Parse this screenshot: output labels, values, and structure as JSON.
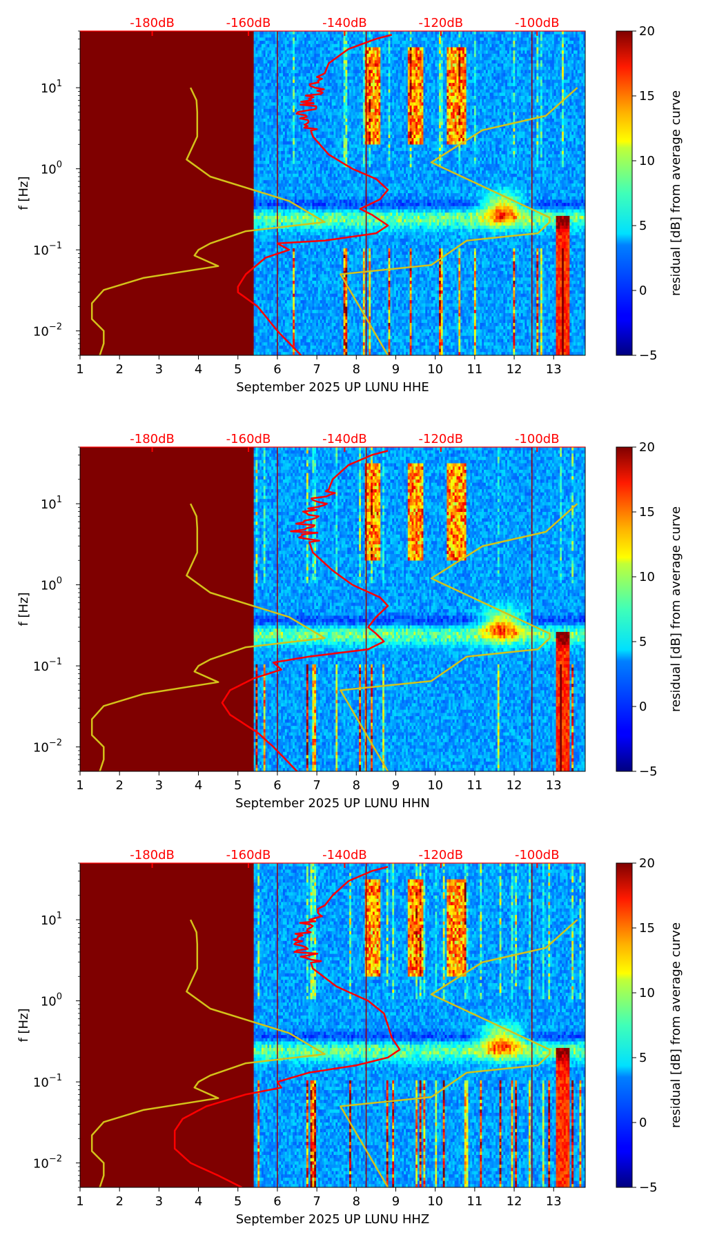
{
  "figure": {
    "type": "spectrogram-panels",
    "colormap": "jet",
    "background_color": "#7f0000",
    "panels": [
      {
        "channel": "HHE",
        "xlabel": "September 2025 UP LUNU  HHE",
        "ylabel": "f [Hz]",
        "colorbar_label": "residual [dB] from average curve",
        "gap_end_day": 5.4,
        "red_curve": [
          [
            45,
            8.9
          ],
          [
            40,
            8.5
          ],
          [
            30,
            7.8
          ],
          [
            20,
            7.3
          ],
          [
            15,
            7.2
          ],
          [
            10,
            7.0
          ],
          [
            7,
            6.8
          ],
          [
            5,
            6.7
          ],
          [
            3.5,
            6.8
          ],
          [
            2.5,
            6.9
          ],
          [
            1.5,
            7.3
          ],
          [
            1.0,
            7.9
          ],
          [
            0.75,
            8.5
          ],
          [
            0.55,
            8.8
          ],
          [
            0.42,
            8.6
          ],
          [
            0.32,
            8.1
          ],
          [
            0.27,
            8.4
          ],
          [
            0.2,
            8.8
          ],
          [
            0.16,
            8.5
          ],
          [
            0.13,
            7.2
          ],
          [
            0.12,
            6.0
          ],
          [
            0.1,
            6.3
          ],
          [
            0.08,
            5.7
          ],
          [
            0.05,
            5.2
          ],
          [
            0.035,
            5.0
          ],
          [
            0.03,
            5.0
          ],
          [
            0.02,
            5.5
          ],
          [
            0.01,
            6.0
          ],
          [
            0.005,
            6.6
          ]
        ],
        "red_noise_top": 15,
        "red_noise_bottom": 3,
        "red_noise_amp": 0.25,
        "hot_columns": [
          [
            8.2,
            8.6
          ],
          [
            9.3,
            9.7
          ],
          [
            10.3,
            10.8
          ]
        ]
      },
      {
        "channel": "HHN",
        "xlabel": "September 2025 UP LUNU  HHN",
        "ylabel": "f [Hz]",
        "colorbar_label": "residual [dB] from average curve",
        "gap_end_day": 5.4,
        "red_curve": [
          [
            45,
            8.8
          ],
          [
            40,
            8.4
          ],
          [
            30,
            7.8
          ],
          [
            20,
            7.4
          ],
          [
            15,
            7.3
          ],
          [
            10,
            7.0
          ],
          [
            7,
            6.8
          ],
          [
            5,
            6.6
          ],
          [
            3.5,
            6.8
          ],
          [
            2.5,
            6.9
          ],
          [
            1.5,
            7.4
          ],
          [
            1.0,
            7.9
          ],
          [
            0.7,
            8.6
          ],
          [
            0.55,
            8.8
          ],
          [
            0.4,
            8.5
          ],
          [
            0.3,
            8.3
          ],
          [
            0.25,
            8.5
          ],
          [
            0.2,
            8.7
          ],
          [
            0.16,
            8.3
          ],
          [
            0.13,
            6.8
          ],
          [
            0.11,
            5.9
          ],
          [
            0.09,
            6.1
          ],
          [
            0.07,
            5.4
          ],
          [
            0.05,
            4.8
          ],
          [
            0.035,
            4.6
          ],
          [
            0.025,
            4.8
          ],
          [
            0.015,
            5.5
          ],
          [
            0.01,
            5.9
          ],
          [
            0.005,
            6.5
          ]
        ],
        "red_noise_top": 15,
        "red_noise_bottom": 3.5,
        "red_noise_amp": 0.35,
        "hot_columns": [
          [
            8.2,
            8.6
          ],
          [
            9.3,
            9.7
          ],
          [
            10.3,
            10.8
          ]
        ]
      },
      {
        "channel": "HHZ",
        "xlabel": "September 2025 UP LUNU  HHZ",
        "ylabel": "f [Hz]",
        "colorbar_label": "residual [dB] from average curve",
        "gap_end_day": 5.4,
        "red_curve": [
          [
            45,
            8.8
          ],
          [
            40,
            8.4
          ],
          [
            30,
            7.8
          ],
          [
            20,
            7.4
          ],
          [
            15,
            7.2
          ],
          [
            10,
            6.9
          ],
          [
            7,
            6.7
          ],
          [
            5,
            6.6
          ],
          [
            3.5,
            6.8
          ],
          [
            2.5,
            6.9
          ],
          [
            1.5,
            7.5
          ],
          [
            1.0,
            8.3
          ],
          [
            0.7,
            8.7
          ],
          [
            0.5,
            8.8
          ],
          [
            0.35,
            8.9
          ],
          [
            0.25,
            9.1
          ],
          [
            0.2,
            8.8
          ],
          [
            0.16,
            8.0
          ],
          [
            0.13,
            6.8
          ],
          [
            0.1,
            6.0
          ],
          [
            0.085,
            6.1
          ],
          [
            0.07,
            5.2
          ],
          [
            0.05,
            4.2
          ],
          [
            0.035,
            3.6
          ],
          [
            0.025,
            3.4
          ],
          [
            0.015,
            3.4
          ],
          [
            0.01,
            3.8
          ],
          [
            0.007,
            4.5
          ],
          [
            0.005,
            5.1
          ]
        ],
        "red_noise_top": 15,
        "red_noise_bottom": 3,
        "red_noise_amp": 0.3,
        "hot_columns": [
          [
            8.2,
            8.6
          ],
          [
            9.3,
            9.7
          ],
          [
            10.3,
            10.8
          ]
        ]
      }
    ],
    "x_axis": {
      "min": 1,
      "max": 13.8,
      "ticks": [
        "1",
        "2",
        "3",
        "4",
        "5",
        "6",
        "7",
        "8",
        "9",
        "10",
        "11",
        "12",
        "13"
      ]
    },
    "y_axis": {
      "scale": "log",
      "min": 0.005,
      "max": 50,
      "tick_labels": [
        {
          "value": 10,
          "base": "10",
          "exp": "1"
        },
        {
          "value": 1,
          "base": "10",
          "exp": "0"
        },
        {
          "value": 0.1,
          "base": "10",
          "exp": "−1"
        },
        {
          "value": 0.01,
          "base": "10",
          "exp": "−2"
        }
      ]
    },
    "db_axis": {
      "color": "#ff0000",
      "min": -195,
      "max": -90,
      "ticks": [
        {
          "value": -180,
          "label": "-180dB"
        },
        {
          "value": -160,
          "label": "-160dB"
        },
        {
          "value": -140,
          "label": "-140dB"
        },
        {
          "value": -120,
          "label": "-120dB"
        },
        {
          "value": -100,
          "label": "-100dB"
        }
      ]
    },
    "colorbar": {
      "min": -5,
      "max": 20,
      "ticks": [
        {
          "value": 20,
          "label": "20"
        },
        {
          "value": 15,
          "label": "15"
        },
        {
          "value": 10,
          "label": "10"
        },
        {
          "value": 5,
          "label": "5"
        },
        {
          "value": 0,
          "label": "0"
        },
        {
          "value": -5,
          "label": "−5"
        }
      ]
    },
    "yellow_low_model": [
      [
        10,
        3.8
      ],
      [
        7,
        3.95
      ],
      [
        5,
        3.97
      ],
      [
        2.5,
        3.97
      ],
      [
        1.3,
        3.7
      ],
      [
        0.8,
        4.3
      ],
      [
        0.4,
        6.3
      ],
      [
        0.22,
        7.2
      ],
      [
        0.17,
        5.2
      ],
      [
        0.12,
        4.3
      ],
      [
        0.1,
        4.0
      ],
      [
        0.085,
        3.9
      ],
      [
        0.063,
        4.5
      ],
      [
        0.045,
        2.6
      ],
      [
        0.032,
        1.6
      ],
      [
        0.022,
        1.3
      ],
      [
        0.014,
        1.3
      ],
      [
        0.01,
        1.6
      ],
      [
        0.007,
        1.6
      ],
      [
        0.005,
        1.5
      ]
    ],
    "yellow_high_model": [
      [
        10,
        13.6
      ],
      [
        4.5,
        12.8
      ],
      [
        3,
        11.2
      ],
      [
        1.2,
        9.9
      ],
      [
        0.25,
        12.9
      ],
      [
        0.22,
        12.9
      ],
      [
        0.16,
        12.6
      ],
      [
        0.13,
        10.8
      ],
      [
        0.065,
        9.9
      ],
      [
        0.05,
        7.6
      ],
      [
        0.005,
        8.8
      ]
    ]
  },
  "chart_data": [
    {
      "type": "heatmap",
      "title": "",
      "xlabel": "September 2025 UP LUNU  HHE",
      "ylabel": "f [Hz]",
      "colorbar_label": "residual [dB] from average curve",
      "xlim": [
        1,
        13.8
      ],
      "ylim": [
        0.005,
        50
      ],
      "colorbar_range": [
        -5,
        20
      ],
      "secondary_xaxis": "-180dB, -160dB, -140dB, -120dB, -100dB (top, red)"
    },
    {
      "type": "heatmap",
      "title": "",
      "xlabel": "September 2025 UP LUNU  HHN",
      "ylabel": "f [Hz]",
      "colorbar_label": "residual [dB] from average curve",
      "xlim": [
        1,
        13.8
      ],
      "ylim": [
        0.005,
        50
      ],
      "colorbar_range": [
        -5,
        20
      ],
      "secondary_xaxis": "-180dB, -160dB, -140dB, -120dB, -100dB (top, red)"
    },
    {
      "type": "heatmap",
      "title": "",
      "xlabel": "September 2025 UP LUNU  HHZ",
      "ylabel": "f [Hz]",
      "colorbar_label": "residual [dB] from average curve",
      "xlim": [
        1,
        13.8
      ],
      "ylim": [
        0.005,
        50
      ],
      "colorbar_range": [
        -5,
        20
      ],
      "secondary_xaxis": "-180dB, -160dB, -140dB, -120dB, -100dB (top, red)"
    }
  ]
}
